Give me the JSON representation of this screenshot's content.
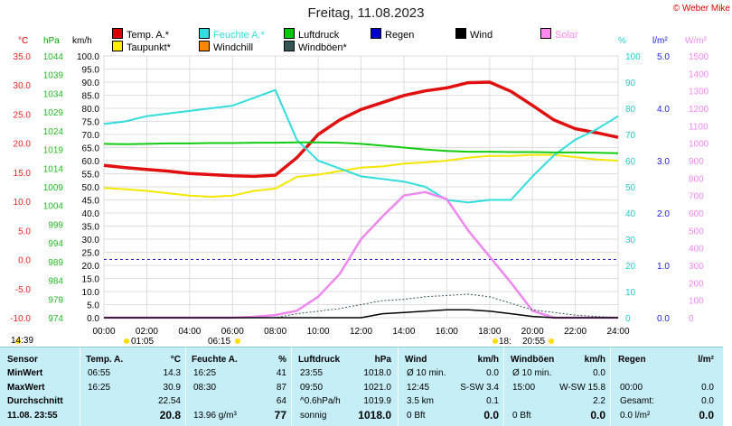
{
  "title": "Freitag, 11.08.2023",
  "copyright": "© Weber Mike",
  "legend": [
    {
      "label": "Temp. A.*",
      "color": "#dd0000"
    },
    {
      "label": "Feuchte A.*",
      "color": "#33dddd"
    },
    {
      "label": "Luftdruck",
      "color": "#00cc00"
    },
    {
      "label": "Regen",
      "color": "#0000cc"
    },
    {
      "label": "Wind",
      "color": "#000000"
    },
    {
      "label": "Solar",
      "color": "#ff88ee"
    },
    {
      "label": "Taupunkt*",
      "color": "#ffee00"
    },
    {
      "label": "Windchill",
      "color": "#ff8800"
    },
    {
      "label": "Windböen*",
      "color": "#335555"
    }
  ],
  "units": {
    "temp": "°C",
    "press": "hPa",
    "wind": "km/h",
    "hum": "%",
    "rain": "l/m²",
    "solar": "W/m²"
  },
  "colors": {
    "temp": "#ee2222",
    "hum": "#22cccc",
    "press": "#22bb22",
    "wind": "#111111",
    "rain": "#2222dd",
    "solar": "#ee88ee"
  },
  "axes": {
    "temp": [
      "35.0",
      "30.0",
      "25.0",
      "20.0",
      "15.0",
      "10.0",
      "5.0",
      "0.0",
      "-5.0",
      "-10.0"
    ],
    "press": [
      "1044",
      "1039",
      "1034",
      "1029",
      "1024",
      "1019",
      "1014",
      "1009",
      "1004",
      "999",
      "994",
      "989",
      "984",
      "979",
      "974"
    ],
    "wind": [
      "100.0",
      "95.0",
      "90.0",
      "85.0",
      "80.0",
      "75.0",
      "70.0",
      "65.0",
      "60.0",
      "55.0",
      "50.0",
      "45.0",
      "40.0",
      "35.0",
      "30.0",
      "25.0",
      "20.0",
      "15.0",
      "10.0",
      "5.0",
      "0.0"
    ],
    "hum": [
      "100",
      "90",
      "80",
      "70",
      "60",
      "50",
      "40",
      "30",
      "20",
      "10",
      "0"
    ],
    "rain": [
      "5.0",
      "4.0",
      "3.0",
      "2.0",
      "1.0",
      "0.0"
    ],
    "solar": [
      "1500",
      "1400",
      "1300",
      "1200",
      "1100",
      "1000",
      "900",
      "800",
      "700",
      "600",
      "500",
      "400",
      "300",
      "200",
      "100",
      "0"
    ],
    "time": [
      "00:00",
      "02:00",
      "04:00",
      "06:00",
      "08:00",
      "10:00",
      "12:00",
      "14:00",
      "16:00",
      "18:00",
      "20:00",
      "22:00",
      "24:00"
    ]
  },
  "sun": {
    "moonrise": "14:39",
    "sunrise_a": "01:05",
    "sunrise": "06:15",
    "sunset_a": "18:",
    "sunset": "20:55"
  },
  "chart_data": {
    "type": "line",
    "x_hours": [
      0,
      1,
      2,
      3,
      4,
      5,
      6,
      7,
      8,
      9,
      10,
      11,
      12,
      13,
      14,
      15,
      16,
      17,
      18,
      19,
      20,
      21,
      22,
      23,
      24
    ],
    "series": [
      {
        "name": "Temp. A.*",
        "axis": "temp",
        "values": [
          16.2,
          15.8,
          15.5,
          15.2,
          14.8,
          14.6,
          14.4,
          14.3,
          14.5,
          17.5,
          21.5,
          24.0,
          25.8,
          27.0,
          28.2,
          29.0,
          29.5,
          30.4,
          30.5,
          28.9,
          26.5,
          24.0,
          22.5,
          21.8,
          21.0
        ]
      },
      {
        "name": "Taupunkt*",
        "axis": "temp",
        "values": [
          12.3,
          12.1,
          11.8,
          11.4,
          11.0,
          10.8,
          11.0,
          11.8,
          12.2,
          14.2,
          14.6,
          15.2,
          15.8,
          16.0,
          16.5,
          16.7,
          17.0,
          17.5,
          17.8,
          17.8,
          18.0,
          18.0,
          17.6,
          17.2,
          17.0
        ]
      },
      {
        "name": "Feuchte A.*",
        "axis": "hum",
        "values": [
          74,
          75,
          77,
          78,
          79,
          80,
          81,
          84,
          87,
          68,
          60,
          57,
          54,
          53,
          52,
          50,
          45,
          44,
          45,
          45,
          54,
          62,
          68,
          72,
          77
        ]
      },
      {
        "name": "Luftdruck",
        "axis": "press",
        "values": [
          1020.5,
          1020.4,
          1020.5,
          1020.6,
          1020.6,
          1020.7,
          1020.7,
          1020.8,
          1020.8,
          1020.9,
          1020.9,
          1020.8,
          1020.5,
          1020.0,
          1019.5,
          1019.0,
          1018.6,
          1018.4,
          1018.4,
          1018.3,
          1018.3,
          1018.2,
          1018.2,
          1018.1,
          1018.0
        ]
      },
      {
        "name": "Solar",
        "axis": "solar",
        "values": [
          0,
          0,
          0,
          0,
          0,
          0,
          0,
          5,
          15,
          40,
          120,
          250,
          450,
          580,
          700,
          720,
          680,
          500,
          350,
          200,
          40,
          0,
          0,
          0,
          0
        ]
      },
      {
        "name": "Windböen*",
        "axis": "wind",
        "values": [
          0,
          0,
          0,
          0,
          0,
          0,
          0,
          0,
          0,
          1.5,
          2.5,
          3.5,
          5.0,
          6.5,
          7.0,
          8.0,
          8.5,
          9.0,
          8.0,
          5.5,
          3.0,
          2.0,
          1.0,
          0.5,
          0
        ]
      },
      {
        "name": "Wind",
        "axis": "wind",
        "values": [
          0,
          0,
          0,
          0,
          0,
          0,
          0,
          0,
          0,
          0,
          0,
          0,
          0,
          1.5,
          2.0,
          2.5,
          3.0,
          3.0,
          2.5,
          1.5,
          0.5,
          0,
          0,
          0,
          0
        ]
      }
    ],
    "ylim_temp": [
      -10,
      35
    ],
    "ylim_hum": [
      0,
      100
    ],
    "ylim_press": [
      974,
      1044
    ],
    "ylim_wind": [
      0,
      100
    ],
    "ylim_solar": [
      0,
      1500
    ],
    "ylim_rain": [
      0,
      5
    ],
    "grid": true
  },
  "table": {
    "headers": [
      "Sensor",
      "Temp. A.",
      "°C",
      "Feuchte A.",
      "%",
      "Luftdruck",
      "hPa",
      "Wind",
      "km/h",
      "Windböen",
      "km/h",
      "Regen",
      "l/m²"
    ],
    "rows": [
      {
        "label": "MinWert",
        "temp_time": "06:55",
        "temp": "14.3",
        "hum_time": "16:25",
        "hum": "41",
        "press_time": "23:55",
        "press": "1018.0",
        "wind_time": "Ø 10 min.",
        "wind": "0.0",
        "gust_time": "Ø 10 min.",
        "gust": "0.0",
        "rain_time": "",
        "rain": ""
      },
      {
        "label": "MaxWert",
        "temp_time": "16:25",
        "temp": "30.9",
        "hum_time": "08:30",
        "hum": "87",
        "press_time": "09:50",
        "press": "1021.0",
        "wind_time": "12:45",
        "wind": "S-SW 3.4",
        "gust_time": "15:00",
        "gust": "W-SW 15.8",
        "rain_time": "00:00",
        "rain": "0.0"
      },
      {
        "label": "Durchschnitt",
        "temp_time": "",
        "temp": "22.54",
        "hum_time": "",
        "hum": "64",
        "press_time": "^0.6hPa/h",
        "press": "1019.9",
        "wind_time": "3.5 km",
        "wind": "0.1",
        "gust_time": "",
        "gust": "2.2",
        "rain_time": "Gesamt:",
        "rain": "0.0"
      },
      {
        "label": "11.08. 23:55",
        "temp_time": "",
        "temp": "20.8",
        "hum_time": "13.96 g/m³",
        "hum": "77",
        "press_time": "sonnig",
        "press": "1018.0",
        "wind_time": "0 Bft",
        "wind": "0.0",
        "gust_time": "0 Bft",
        "gust": "0.0",
        "rain_time": "0.0 l/m²",
        "rain": "0.0"
      }
    ]
  }
}
